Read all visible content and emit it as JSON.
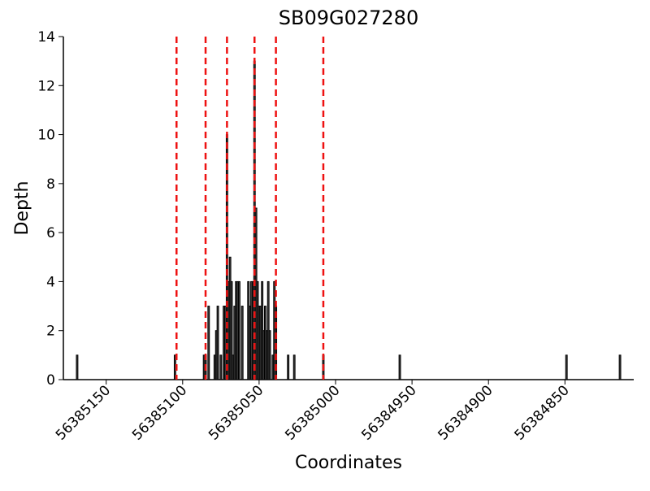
{
  "chart_data": {
    "type": "bar",
    "title": "SB09G027280",
    "x_label": "Coordinates",
    "y_label": "Depth",
    "x": [
      56385169,
      56385105,
      56385086,
      56385085,
      56385083,
      56385079,
      56385078,
      56385077,
      56385075,
      56385073,
      56385072,
      56385071,
      56385070,
      56385069,
      56385068,
      56385067,
      56385066,
      56385065,
      56385064,
      56385063,
      56385061,
      56385057,
      56385056,
      56385055,
      56385054,
      56385053,
      56385052,
      56385051,
      56385050,
      56385049,
      56385048,
      56385047,
      56385046,
      56385045,
      56385044,
      56385043,
      56385041,
      56385040,
      56385039,
      56385031,
      56385027,
      56385008,
      56384958,
      56384849,
      56384814
    ],
    "values": [
      1,
      1,
      1,
      1,
      3,
      1,
      2,
      3,
      1,
      3,
      3,
      10,
      4,
      5,
      4,
      1,
      3,
      4,
      4,
      4,
      3,
      4,
      3,
      4,
      4,
      13,
      7,
      4,
      3,
      3,
      4,
      2,
      3,
      2,
      4,
      2,
      1,
      4,
      3,
      1,
      1,
      1,
      1,
      1,
      1
    ],
    "color": "#000000",
    "vlines": [
      56385104,
      56385085,
      56385071,
      56385053,
      56385039,
      56385008
    ],
    "vline_color": "#ee1111",
    "vline_style": "dashed",
    "xlim": [
      56385178,
      56384805
    ],
    "xticks": [
      56385150,
      56385100,
      56385050,
      56385000,
      56384950,
      56384900,
      56384850
    ],
    "ylim": [
      0,
      14
    ],
    "yticks": [
      0,
      2,
      4,
      6,
      8,
      10,
      12,
      14
    ]
  }
}
